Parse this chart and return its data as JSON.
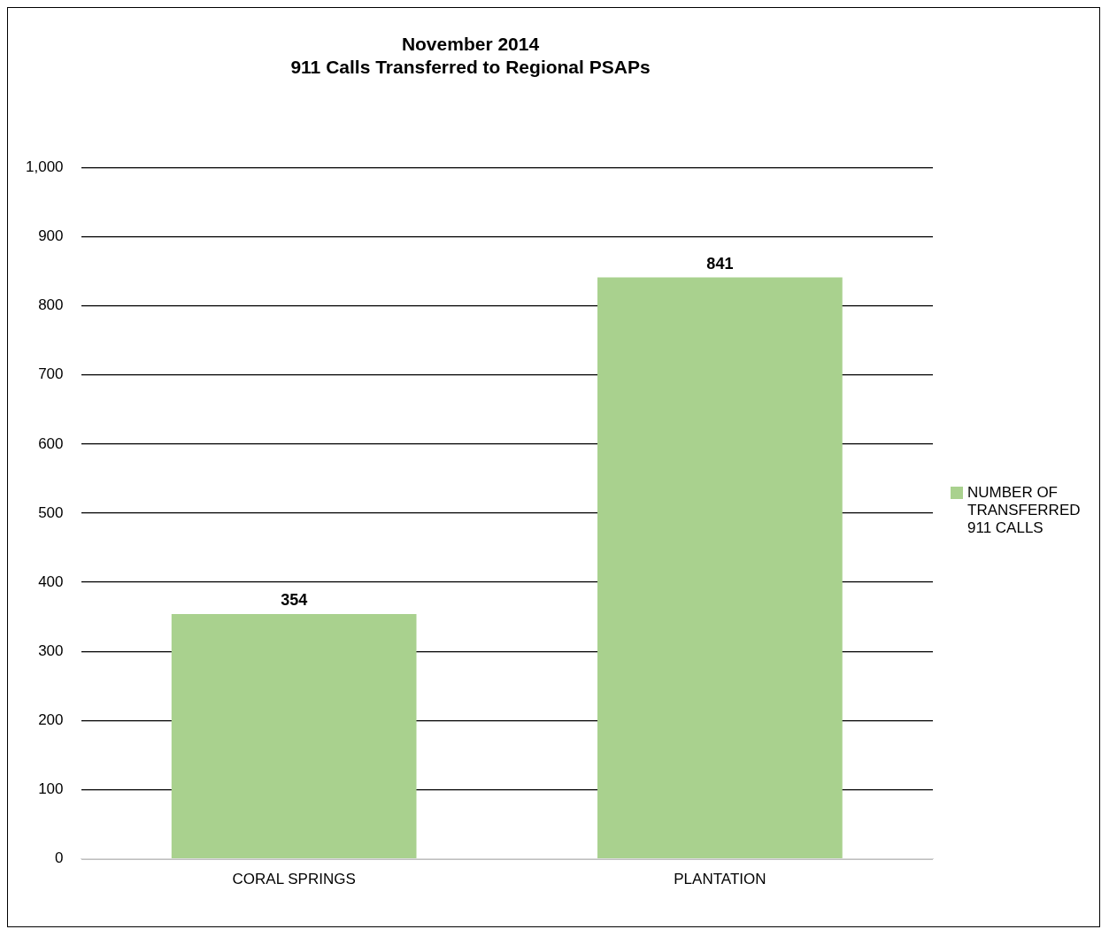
{
  "chart_data": {
    "type": "bar",
    "title": "November 2014",
    "subtitle": "911 Calls Transferred to Regional PSAPs",
    "categories": [
      "CORAL SPRINGS",
      "PLANTATION"
    ],
    "series": [
      {
        "name": "NUMBER OF TRANSFERRED 911 CALLS",
        "color": "#a9d18e",
        "values": [
          354,
          841
        ]
      }
    ],
    "ylim": [
      0,
      1000
    ],
    "yticks": [
      0,
      100,
      200,
      300,
      400,
      500,
      600,
      700,
      800,
      900,
      {
        "value": 1000,
        "label": "1,000"
      }
    ],
    "grid": "y",
    "legend": "right",
    "data_labels": true
  }
}
